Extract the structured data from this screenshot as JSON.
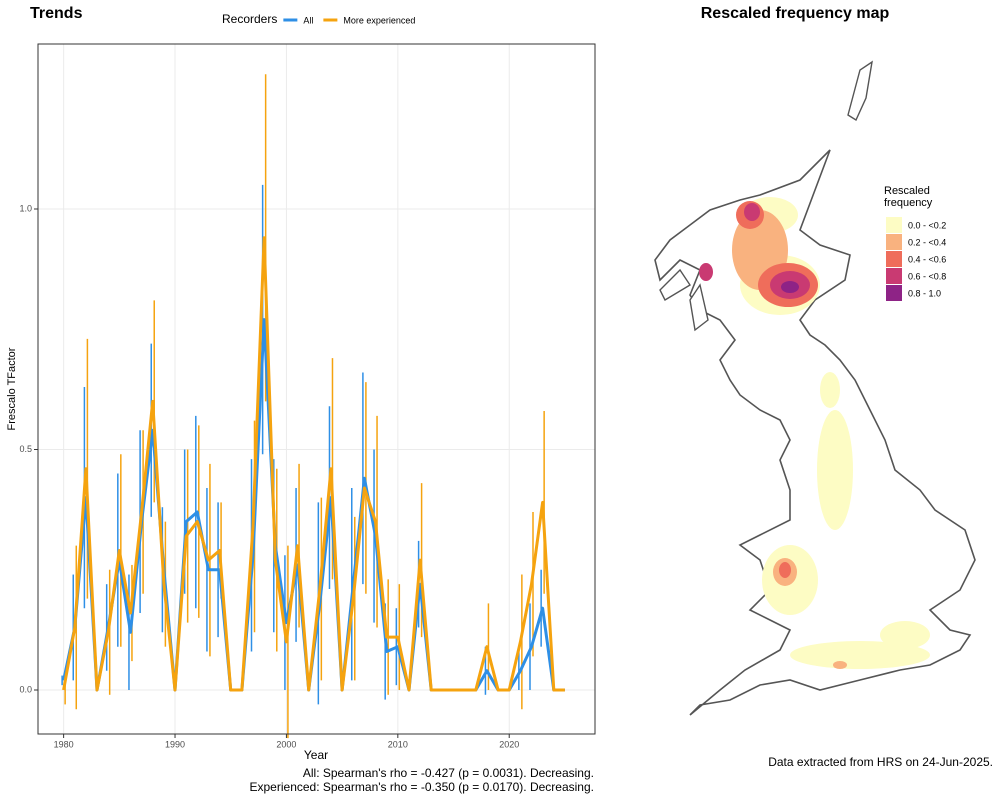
{
  "chart_data": [
    {
      "type": "line",
      "title": "Trends",
      "legend_title": "Recorders",
      "xlabel": "Year",
      "ylabel": "Frescalo TFactor",
      "x": [
        1980,
        1981,
        1982,
        1983,
        1984,
        1985,
        1986,
        1987,
        1988,
        1989,
        1990,
        1991,
        1992,
        1993,
        1994,
        1995,
        1996,
        1997,
        1998,
        1999,
        2000,
        2001,
        2002,
        2003,
        2004,
        2005,
        2006,
        2007,
        2008,
        2009,
        2010,
        2011,
        2012,
        2013,
        2014,
        2015,
        2016,
        2017,
        2018,
        2019,
        2020,
        2021,
        2022,
        2023,
        2024,
        2025
      ],
      "series": [
        {
          "name": "All",
          "color": "#2e8fe6",
          "values": [
            0.02,
            0.13,
            0.4,
            0,
            0.13,
            0.27,
            0.12,
            0.35,
            0.54,
            0.25,
            0,
            0.35,
            0.37,
            0.25,
            0.25,
            0,
            0,
            0.28,
            0.77,
            0.3,
            0.14,
            0.26,
            0,
            0.18,
            0.4,
            0,
            0.22,
            0.44,
            0.32,
            0.08,
            0.09,
            0,
            0.22,
            0,
            0,
            0,
            0,
            0,
            0.04,
            0,
            0,
            0.04,
            0.09,
            0.17,
            0,
            0
          ],
          "errors": [
            0.01,
            0.11,
            0.23,
            0,
            0.09,
            0.18,
            0.12,
            0.19,
            0.18,
            0.13,
            0,
            0.15,
            0.2,
            0.17,
            0.14,
            0,
            0,
            0.2,
            0.28,
            0.18,
            0.14,
            0.16,
            0,
            0.21,
            0.19,
            0,
            0.2,
            0.22,
            0.18,
            0.1,
            0.08,
            0,
            0.09,
            0,
            0,
            0,
            0,
            0,
            0.05,
            0,
            0,
            0.04,
            0.09,
            0.08,
            0,
            0
          ]
        },
        {
          "name": "More experienced",
          "color": "#f5a30f",
          "values": [
            0,
            0.13,
            0.46,
            0,
            0.12,
            0.29,
            0.16,
            0.37,
            0.6,
            0.22,
            0,
            0.32,
            0.35,
            0.27,
            0.29,
            0,
            0,
            0.34,
            0.94,
            0.27,
            0.1,
            0.3,
            0,
            0.21,
            0.46,
            0,
            0.19,
            0.42,
            0.35,
            0.11,
            0.11,
            0,
            0.27,
            0,
            0,
            0,
            0,
            0,
            0.09,
            0,
            0,
            0.1,
            0.22,
            0.39,
            0,
            0
          ],
          "errors": [
            0.03,
            0.17,
            0.27,
            0,
            0.13,
            0.2,
            0.1,
            0.17,
            0.21,
            0.13,
            0,
            0.18,
            0.2,
            0.2,
            0.1,
            0,
            0,
            0.22,
            0.34,
            0.19,
            0.2,
            0.17,
            0,
            0.19,
            0.23,
            0,
            0.17,
            0.22,
            0.22,
            0.12,
            0.11,
            0,
            0.16,
            0,
            0,
            0,
            0,
            0,
            0.09,
            0,
            0,
            0.14,
            0.15,
            0.19,
            0,
            0
          ]
        }
      ],
      "xlim": [
        1977.7,
        2027.7
      ],
      "xticks": [
        1980,
        1990,
        2000,
        2010,
        2020
      ],
      "ylim": [
        -0.0915,
        1.343
      ],
      "yticks": [
        {
          "value": 0,
          "label": "0.0"
        },
        0.5,
        {
          "value": 1,
          "label": "1.0"
        }
      ],
      "grid": true,
      "notes": [
        "All: Spearman's rho = -0.427 (p = 0.0031). Decreasing.",
        "Experienced: Spearman's rho = -0.350 (p = 0.0170). Decreasing."
      ]
    },
    {
      "type": "map",
      "title": "Rescaled frequency map",
      "legend_title": "Rescaled frequency",
      "legend": [
        {
          "label": "0.0 - <0.2",
          "color": "#fdfcc4"
        },
        {
          "label": "0.2 - <0.4",
          "color": "#f9b27f"
        },
        {
          "label": "0.4 - <0.6",
          "color": "#ef6d5b"
        },
        {
          "label": "0.6 - <0.8",
          "color": "#c93a72"
        },
        {
          "label": "0.8 - 1.0",
          "color": "#8e2386"
        }
      ],
      "note": "Data extracted from HRS on 24-Jun-2025."
    }
  ]
}
